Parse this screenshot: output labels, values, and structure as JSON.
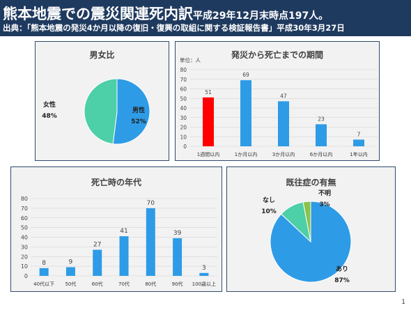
{
  "header": {
    "title_main": "熊本地震での震災関連死内訳",
    "title_sub": "平成29年12月末時点197人。",
    "source": "出典：「熊本地震の発災4か月以降の復旧・復興の取組に関する検証報告書」平成30年3月27日"
  },
  "page_number": "1",
  "colors": {
    "header_bg": "#1f3a5f",
    "blue": "#2e9be6",
    "red": "#ff0000",
    "teal": "#4dcfa8",
    "green": "#8bc34a"
  },
  "chart_data": [
    {
      "type": "pie",
      "title": "男女比",
      "labels": [
        "男性",
        "女性"
      ],
      "values": [
        52,
        48
      ],
      "value_labels": [
        "52%",
        "48%"
      ],
      "colors": [
        "#2e9be6",
        "#4dcfa8"
      ]
    },
    {
      "type": "bar",
      "title": "発災から死亡までの期間",
      "unit": "単位：人",
      "categories": [
        "1週間以内",
        "1か月以内",
        "3か月以内",
        "6か月以内",
        "1年以内"
      ],
      "values": [
        51,
        69,
        47,
        23,
        7
      ],
      "colors": [
        "#ff0000",
        "#2e9be6",
        "#2e9be6",
        "#2e9be6",
        "#2e9be6"
      ],
      "ylim": [
        0,
        80
      ],
      "yticks": [
        0,
        10,
        20,
        30,
        40,
        50,
        60,
        70,
        80
      ]
    },
    {
      "type": "bar",
      "title": "死亡時の年代",
      "categories": [
        "40代以下",
        "50代",
        "60代",
        "70代",
        "80代",
        "90代",
        "100歳以上"
      ],
      "values": [
        8,
        9,
        27,
        41,
        70,
        39,
        3
      ],
      "ylim": [
        0,
        80
      ],
      "yticks": [
        0,
        10,
        20,
        30,
        40,
        50,
        60,
        70,
        80
      ]
    },
    {
      "type": "pie",
      "title": "既往症の有無",
      "labels": [
        "あり",
        "なし",
        "不明"
      ],
      "values": [
        87,
        10,
        3
      ],
      "value_labels": [
        "87%",
        "10%",
        "3%"
      ],
      "colors": [
        "#2e9be6",
        "#4dcfa8",
        "#8bc34a"
      ]
    }
  ]
}
